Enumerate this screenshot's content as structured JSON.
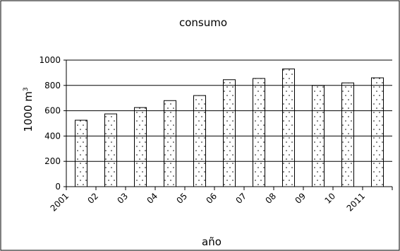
{
  "chart_data": {
    "type": "bar",
    "title": "consumo",
    "xlabel": "año",
    "ylabel": "1000 m",
    "ylabel_superscript": "3",
    "categories": [
      "2001",
      "02",
      "03",
      "04",
      "05",
      "06",
      "07",
      "08",
      "09",
      "10",
      "2011"
    ],
    "values": [
      525,
      575,
      625,
      680,
      720,
      845,
      855,
      930,
      800,
      820,
      860
    ],
    "ylim": [
      0,
      1000
    ],
    "yticks": [
      0,
      200,
      400,
      600,
      800,
      1000
    ],
    "grid": true,
    "bar_fill": "dotted",
    "colors": {
      "bar_stroke": "#000000",
      "grid": "#000000",
      "background": "#ffffff"
    }
  }
}
